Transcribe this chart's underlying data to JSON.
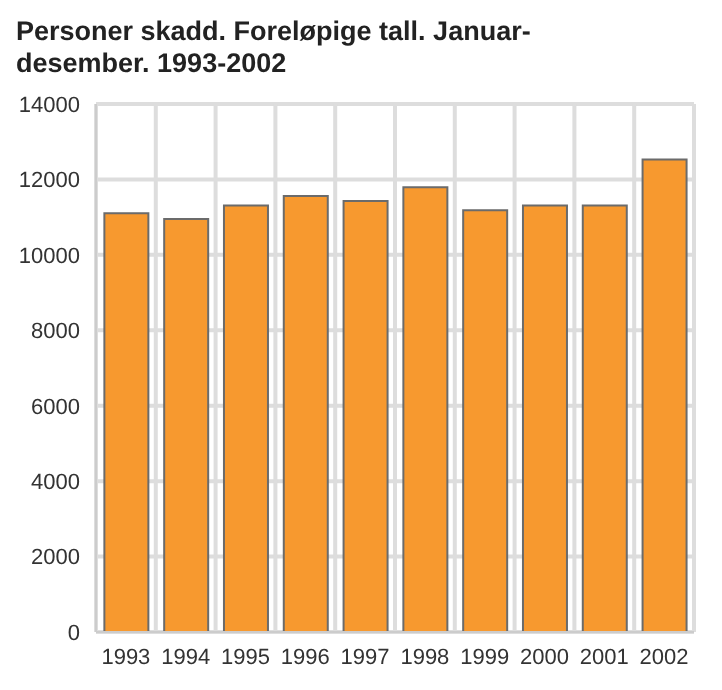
{
  "chart_data": {
    "type": "bar",
    "title": "Personer skadd. Foreløpige tall. Januar-desember. 1993-2002",
    "categories": [
      "1993",
      "1994",
      "1995",
      "1996",
      "1997",
      "1998",
      "1999",
      "2000",
      "2001",
      "2002"
    ],
    "values": [
      11100,
      10950,
      11310,
      11560,
      11430,
      11790,
      11180,
      11310,
      11310,
      12530
    ],
    "color": "#f7992f",
    "ylim": [
      0,
      14000
    ],
    "yticks": [
      0,
      2000,
      4000,
      6000,
      8000,
      10000,
      12000,
      14000
    ],
    "grid": true
  }
}
